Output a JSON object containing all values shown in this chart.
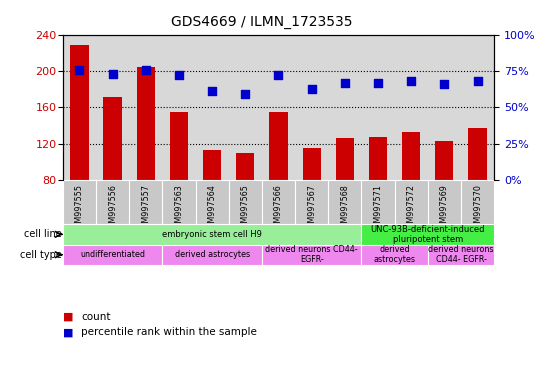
{
  "title": "GDS4669 / ILMN_1723535",
  "samples": [
    "GSM997555",
    "GSM997556",
    "GSM997557",
    "GSM997563",
    "GSM997564",
    "GSM997565",
    "GSM997566",
    "GSM997567",
    "GSM997568",
    "GSM997571",
    "GSM997572",
    "GSM997569",
    "GSM997570"
  ],
  "counts": [
    228,
    172,
    204,
    155,
    113,
    110,
    155,
    115,
    127,
    128,
    133,
    123,
    138
  ],
  "percentiles": [
    76,
    73,
    76,
    72,
    61,
    59,
    72,
    63,
    67,
    67,
    68,
    66,
    68
  ],
  "ylim_left": [
    80,
    240
  ],
  "ylim_right": [
    0,
    100
  ],
  "yticks_left": [
    80,
    120,
    160,
    200,
    240
  ],
  "yticks_right": [
    0,
    25,
    50,
    75,
    100
  ],
  "bar_color": "#cc0000",
  "dot_color": "#0000cc",
  "plot_bg_color": "#d8d8d8",
  "xlabel_bg_color": "#c8c8c8",
  "cell_line_h9_color": "#99ee99",
  "cell_line_unc_color": "#44ee44",
  "cell_type_color": "#ee88ee",
  "cell_line_groups": [
    {
      "label": "embryonic stem cell H9",
      "start": 0,
      "end": 8
    },
    {
      "label": "UNC-93B-deficient-induced\npluripotent stem",
      "start": 9,
      "end": 12
    }
  ],
  "cell_type_groups": [
    {
      "label": "undifferentiated",
      "start": 0,
      "end": 2
    },
    {
      "label": "derived astrocytes",
      "start": 3,
      "end": 5
    },
    {
      "label": "derived neurons CD44-\nEGFR-",
      "start": 6,
      "end": 8
    },
    {
      "label": "derived\nastrocytes",
      "start": 9,
      "end": 10
    },
    {
      "label": "derived neurons\nCD44- EGFR-",
      "start": 11,
      "end": 12
    }
  ],
  "legend_count_label": "count",
  "legend_percentile_label": "percentile rank within the sample"
}
